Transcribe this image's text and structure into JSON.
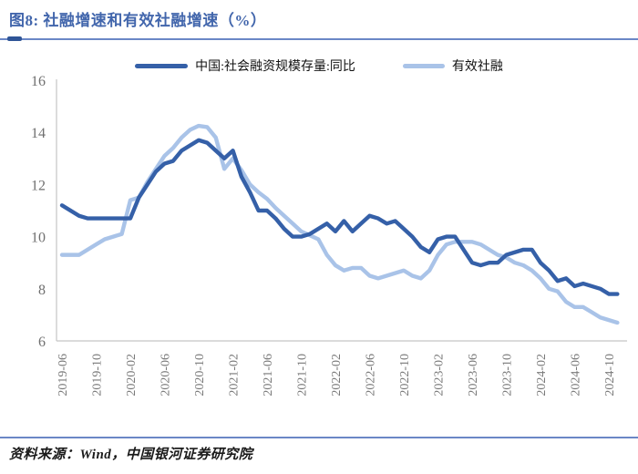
{
  "header": {
    "title": "图8: 社融增速和有效社融增速（%）"
  },
  "footer": {
    "source": "资料来源：Wind，中国银河证券研究院"
  },
  "colors": {
    "title": "#4266AC",
    "rule": "#6B87C6",
    "rule_accent": "#2F5597",
    "axis": "#C5C5C5",
    "series1": "#3560A8",
    "series2": "#A9C3E8"
  },
  "chart_data": {
    "type": "line",
    "title": "图8: 社融增速和有效社融增速（%）",
    "xlabel": "",
    "ylabel": "",
    "ylim": [
      6,
      16
    ],
    "yticks": [
      6,
      8,
      10,
      12,
      14,
      16
    ],
    "grid": false,
    "legend_position": "top-center",
    "x_tick_labels": [
      "2019-06",
      "2019-10",
      "2020-02",
      "2020-06",
      "2020-10",
      "2021-02",
      "2021-06",
      "2021-10",
      "2022-02",
      "2022-06",
      "2022-10",
      "2023-02",
      "2023-06",
      "2023-10",
      "2024-02",
      "2024-06",
      "2024-10"
    ],
    "x": [
      "2019-06",
      "2019-07",
      "2019-08",
      "2019-09",
      "2019-10",
      "2019-11",
      "2019-12",
      "2020-01",
      "2020-02",
      "2020-03",
      "2020-04",
      "2020-05",
      "2020-06",
      "2020-07",
      "2020-08",
      "2020-09",
      "2020-10",
      "2020-11",
      "2020-12",
      "2021-01",
      "2021-02",
      "2021-03",
      "2021-04",
      "2021-05",
      "2021-06",
      "2021-07",
      "2021-08",
      "2021-09",
      "2021-10",
      "2021-11",
      "2021-12",
      "2022-01",
      "2022-02",
      "2022-03",
      "2022-04",
      "2022-05",
      "2022-06",
      "2022-07",
      "2022-08",
      "2022-09",
      "2022-10",
      "2022-11",
      "2022-12",
      "2023-01",
      "2023-02",
      "2023-03",
      "2023-04",
      "2023-05",
      "2023-06",
      "2023-07",
      "2023-08",
      "2023-09",
      "2023-10",
      "2023-11",
      "2023-12",
      "2024-01",
      "2024-02",
      "2024-03",
      "2024-04",
      "2024-05",
      "2024-06",
      "2024-07",
      "2024-08",
      "2024-09",
      "2024-10",
      "2024-11"
    ],
    "series": [
      {
        "name": "中国:社会融资规模存量:同比",
        "color": "#3560A8",
        "values": [
          11.2,
          11.0,
          10.8,
          10.7,
          10.7,
          10.7,
          10.7,
          10.7,
          10.7,
          11.5,
          12.0,
          12.5,
          12.8,
          12.9,
          13.3,
          13.5,
          13.7,
          13.6,
          13.3,
          13.0,
          13.3,
          12.3,
          11.7,
          11.0,
          11.0,
          10.7,
          10.3,
          10.0,
          10.0,
          10.1,
          10.3,
          10.5,
          10.2,
          10.6,
          10.2,
          10.5,
          10.8,
          10.7,
          10.5,
          10.6,
          10.3,
          10.0,
          9.6,
          9.4,
          9.9,
          10.0,
          10.0,
          9.5,
          9.0,
          8.9,
          9.0,
          9.0,
          9.3,
          9.4,
          9.5,
          9.5,
          9.0,
          8.7,
          8.3,
          8.4,
          8.1,
          8.2,
          8.1,
          8.0,
          7.8,
          7.8
        ]
      },
      {
        "name": "有效社融",
        "color": "#A9C3E8",
        "values": [
          9.3,
          9.3,
          9.3,
          9.5,
          9.7,
          9.9,
          10.0,
          10.1,
          11.4,
          11.5,
          12.1,
          12.6,
          13.1,
          13.4,
          13.8,
          14.1,
          14.25,
          14.2,
          13.8,
          12.6,
          13.0,
          12.55,
          12.0,
          11.7,
          11.45,
          11.1,
          10.8,
          10.5,
          10.2,
          10.05,
          9.9,
          9.3,
          8.9,
          8.7,
          8.8,
          8.8,
          8.5,
          8.4,
          8.5,
          8.6,
          8.7,
          8.5,
          8.4,
          8.7,
          9.3,
          9.7,
          9.8,
          9.8,
          9.8,
          9.7,
          9.5,
          9.3,
          9.2,
          9.0,
          8.9,
          8.7,
          8.4,
          8.0,
          7.9,
          7.5,
          7.3,
          7.3,
          7.1,
          6.9,
          6.8,
          6.7
        ]
      }
    ]
  }
}
